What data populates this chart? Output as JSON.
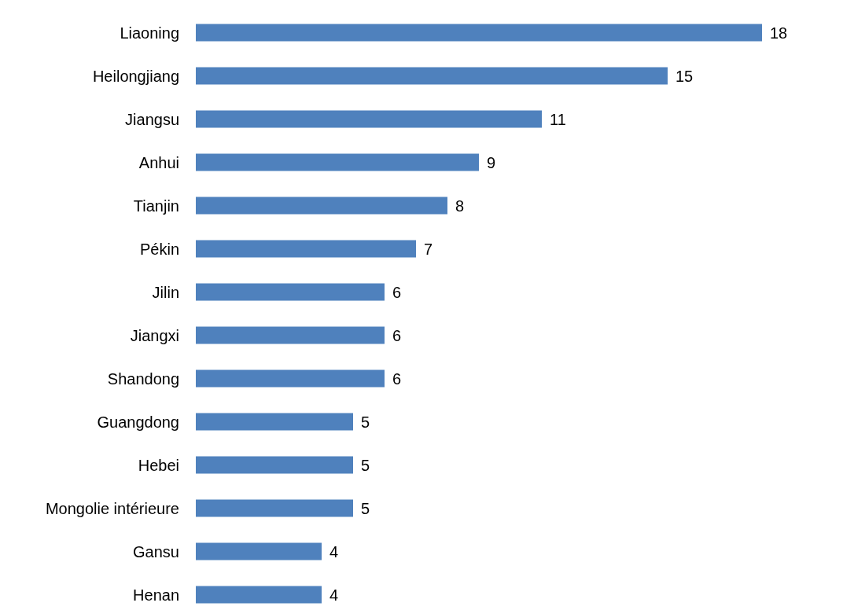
{
  "chart_data": {
    "type": "bar",
    "orientation": "horizontal",
    "data_labels": true,
    "color": "#4f81bd",
    "categories": [
      "Liaoning",
      "Heilongjiang",
      "Jiangsu",
      "Anhui",
      "Tianjin",
      "Pékin",
      "Jilin",
      "Jiangxi",
      "Shandong",
      "Guangdong",
      "Hebei",
      "Mongolie intérieure",
      "Gansu",
      "Henan"
    ],
    "values": [
      18,
      15,
      11,
      9,
      8,
      7,
      6,
      6,
      6,
      5,
      5,
      5,
      4,
      4
    ]
  }
}
